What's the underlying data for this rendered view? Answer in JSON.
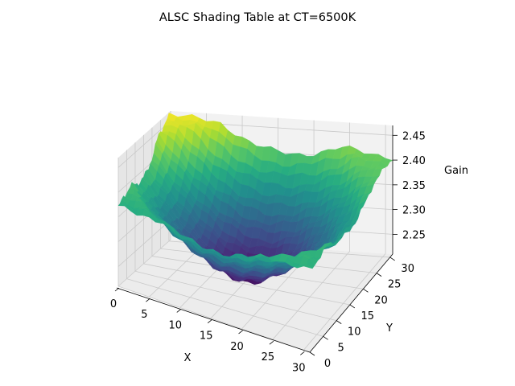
{
  "chart_data": {
    "type": "surface3d",
    "title": "ALSC Shading Table at CT=6500K",
    "xlabel": "X",
    "ylabel": "Y",
    "zlabel": "Gain",
    "xlim": [
      0,
      31
    ],
    "ylim": [
      0,
      31
    ],
    "zlim": [
      2.21,
      2.47
    ],
    "xticks": [
      0,
      5,
      10,
      15,
      20,
      25,
      30
    ],
    "yticks": [
      0,
      5,
      10,
      15,
      20,
      25,
      30
    ],
    "zticks": [
      2.25,
      2.3,
      2.35,
      2.4,
      2.45
    ],
    "ztick_labels": [
      "2.25",
      "2.30",
      "2.35",
      "2.40",
      "2.45"
    ],
    "grid": true,
    "colormap": "viridis",
    "grid_size": [
      32,
      32
    ],
    "surface_model": {
      "center": [
        15.5,
        15.5
      ],
      "center_value": 2.213,
      "corner_values": {
        "x0_y0": 2.37,
        "x31_y0": 2.375,
        "x0_y31": 2.465,
        "x31_y31": 2.405
      }
    }
  }
}
